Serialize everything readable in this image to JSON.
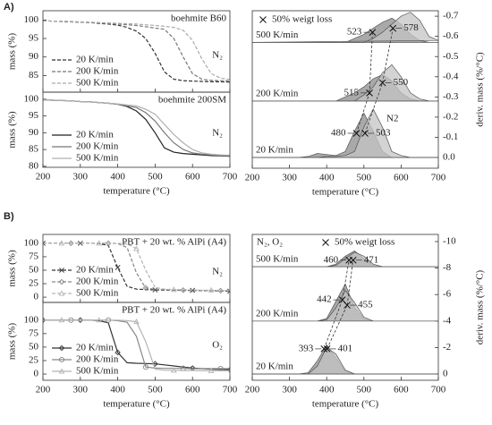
{
  "panel_labels": [
    "A)",
    "B)"
  ],
  "chart_data": [
    {
      "type": "line",
      "title": "boehmite B60",
      "annotation": "N₂",
      "ylabel": "mass (%)",
      "line_style": "dashed",
      "legend": "lower left",
      "x": [
        200,
        225,
        250,
        275,
        300,
        325,
        350,
        375,
        400,
        425,
        450,
        475,
        500,
        525,
        550,
        575,
        600,
        625,
        650,
        675,
        700
      ],
      "xlim": [
        200,
        700
      ],
      "xticks": [
        200,
        300,
        400,
        500,
        600,
        700
      ],
      "ylim": [
        80.5,
        102.5
      ],
      "yticks": [
        85,
        90,
        95,
        100
      ],
      "series": [
        {
          "name": "20 K/min",
          "color": "#333333",
          "values": [
            99.8,
            99.7,
            99.6,
            99.5,
            99.4,
            99.3,
            99.1,
            98.9,
            98.6,
            98.0,
            97,
            95,
            91,
            86,
            84,
            83.6,
            83.5,
            83.4,
            83.3,
            83.3,
            83.2
          ]
        },
        {
          "name": "200 K/min",
          "color": "#777777",
          "values": [
            99.8,
            99.7,
            99.6,
            99.5,
            99.4,
            99.3,
            99.2,
            99.0,
            98.9,
            98.7,
            98.5,
            98.2,
            97.8,
            97.5,
            95,
            90,
            85.5,
            84,
            83.7,
            83.6,
            83.5
          ]
        },
        {
          "name": "500 K/min",
          "color": "#aaaaaa",
          "values": [
            99.8,
            99.7,
            99.7,
            99.6,
            99.5,
            99.4,
            99.3,
            99.2,
            99.1,
            99.0,
            98.9,
            98.7,
            98.5,
            98.3,
            98.0,
            97.2,
            94.5,
            89.5,
            85.5,
            84.3,
            83.9
          ]
        }
      ]
    },
    {
      "type": "line",
      "title": "boehmite 200SM",
      "annotation": "N₂",
      "ylabel": "mass (%)",
      "xlabel": "temperature (°C)",
      "line_style": "solid",
      "legend": "lower left",
      "x": [
        200,
        225,
        250,
        275,
        300,
        325,
        350,
        375,
        400,
        425,
        450,
        475,
        500,
        525,
        550,
        575,
        600,
        625,
        650,
        675,
        700
      ],
      "xlim": [
        200,
        700
      ],
      "xticks": [
        200,
        300,
        400,
        500,
        600,
        700
      ],
      "ylim": [
        79.7,
        102.1
      ],
      "yticks": [
        80,
        85,
        90,
        95,
        100
      ],
      "series": [
        {
          "name": "20 K/min",
          "color": "#222222",
          "values": [
            99.8,
            99.7,
            99.6,
            99.5,
            99.3,
            99.2,
            99.0,
            98.8,
            98.5,
            97.8,
            96.5,
            94,
            90,
            85.5,
            84.2,
            83.8,
            83.6,
            83.4,
            83.2,
            83.1,
            83.0
          ]
        },
        {
          "name": "200 K/min",
          "color": "#777777",
          "values": [
            99.8,
            99.7,
            99.6,
            99.5,
            99.3,
            99.2,
            99.0,
            98.8,
            98.5,
            98.0,
            97.5,
            96,
            93.5,
            90,
            87,
            85,
            84,
            83.6,
            83.4,
            83.2,
            83.1
          ]
        },
        {
          "name": "500 K/min",
          "color": "#b0b0b0",
          "values": [
            99.8,
            99.7,
            99.6,
            99.5,
            99.3,
            99.2,
            99.0,
            98.8,
            98.6,
            98.3,
            98,
            97,
            95.5,
            92.5,
            89.5,
            87,
            85,
            84,
            83.6,
            83.4,
            83.3
          ]
        }
      ]
    },
    {
      "type": "area",
      "ylabel": "deriv. mass (%/°C)",
      "xlabel": "temperature (°C)",
      "annotation": "N2",
      "yaxis": "right",
      "rate_labels": [
        "20 K/min",
        "200 K/min",
        "500 K/min"
      ],
      "x": [
        200,
        225,
        250,
        275,
        300,
        325,
        350,
        375,
        400,
        425,
        450,
        475,
        500,
        525,
        550,
        575,
        600,
        625,
        650,
        675,
        700
      ],
      "xlim": [
        200,
        700
      ],
      "xticks": [
        200,
        300,
        400,
        500,
        600,
        700
      ],
      "ylim": [
        0.053,
        -0.727
      ],
      "yticks": [
        {
          "value": 0,
          "label": "0.0"
        },
        -0.1,
        -0.2,
        -0.3,
        -0.4,
        -0.5,
        -0.6,
        -0.7
      ],
      "series": [
        {
          "color": "#8c8c8c",
          "values": [
            0,
            0,
            0,
            0,
            0,
            0,
            -0.005,
            -0.02,
            -0.015,
            -0.01,
            -0.03,
            -0.13,
            -0.22,
            -0.13,
            -0.03,
            0,
            0,
            0,
            0,
            0,
            0
          ]
        },
        {
          "color": "#c4c4c4",
          "values": [
            0,
            0,
            0,
            0,
            0,
            0,
            0,
            0,
            -0.005,
            -0.005,
            -0.01,
            -0.03,
            -0.15,
            -0.24,
            -0.15,
            -0.03,
            -0.01,
            0,
            0,
            0,
            0
          ]
        },
        {
          "color": "#8c8c8c",
          "values": [
            -0.28,
            -0.28,
            -0.28,
            -0.28,
            -0.28,
            -0.28,
            -0.28,
            -0.28,
            -0.28,
            -0.28,
            -0.3,
            -0.32,
            -0.35,
            -0.39,
            -0.41,
            -0.38,
            -0.32,
            -0.29,
            -0.28,
            -0.28,
            -0.28
          ]
        },
        {
          "color": "#c4c4c4",
          "values": [
            -0.28,
            -0.28,
            -0.28,
            -0.28,
            -0.28,
            -0.28,
            -0.28,
            -0.28,
            -0.28,
            -0.28,
            -0.28,
            -0.28,
            -0.31,
            -0.35,
            -0.42,
            -0.46,
            -0.4,
            -0.32,
            -0.29,
            -0.28,
            -0.28
          ]
        },
        {
          "color": "#8c8c8c",
          "values": [
            -0.57,
            -0.57,
            -0.57,
            -0.57,
            -0.57,
            -0.57,
            -0.57,
            -0.57,
            -0.57,
            -0.57,
            -0.57,
            -0.59,
            -0.61,
            -0.64,
            -0.67,
            -0.69,
            -0.66,
            -0.61,
            -0.58,
            -0.57,
            -0.57
          ]
        },
        {
          "color": "#c4c4c4",
          "values": [
            -0.57,
            -0.57,
            -0.57,
            -0.57,
            -0.57,
            -0.57,
            -0.57,
            -0.57,
            -0.57,
            -0.57,
            -0.57,
            -0.57,
            -0.57,
            -0.59,
            -0.62,
            -0.66,
            -0.7,
            -0.72,
            -0.68,
            -0.6,
            -0.58
          ]
        }
      ],
      "markers": {
        "name": "50% weigt loss",
        "x": [
          480,
          503,
          515,
          550,
          523,
          578
        ],
        "values": [
          -0.12,
          -0.12,
          -0.32,
          -0.37,
          -0.62,
          -0.64
        ]
      }
    },
    {
      "type": "line",
      "title": "PBT + 20 wt. % AlPi (A4)",
      "annotation": "N₂",
      "ylabel": "mass (%)",
      "line_style": "dashed",
      "legend": "lower left",
      "x": [
        200,
        225,
        250,
        275,
        300,
        325,
        350,
        375,
        400,
        425,
        450,
        475,
        500,
        525,
        550,
        575,
        600,
        625,
        650,
        675,
        700
      ],
      "xlim": [
        200,
        700
      ],
      "xticks": [
        200,
        300,
        400,
        500,
        600,
        700
      ],
      "ylim": [
        -9.8,
        116.4
      ],
      "yticks": [
        0,
        25,
        50,
        75,
        100
      ],
      "series": [
        {
          "name": "20 K/min",
          "color": "#333333",
          "marker": "cross",
          "values": [
            100,
            100,
            100,
            100,
            100,
            100,
            99.5,
            96,
            55,
            20,
            15,
            14,
            13.5,
            13,
            13,
            12.5,
            12.5,
            12,
            12,
            11.5,
            11
          ]
        },
        {
          "name": "200 K/min",
          "color": "#888888",
          "marker": "diamond",
          "values": [
            100,
            100,
            100,
            100,
            100,
            100,
            100,
            100,
            99.5,
            92,
            45,
            17,
            14.5,
            14,
            13.5,
            13,
            13,
            12.5,
            12.5,
            12,
            12
          ]
        },
        {
          "name": "500 K/min",
          "color": "#b5b5b5",
          "marker": "triangle",
          "values": [
            100,
            100,
            100,
            100,
            100,
            100,
            100,
            100,
            100,
            99,
            90,
            50,
            18,
            15,
            14,
            14,
            13.5,
            13,
            13,
            12.5,
            12
          ]
        }
      ]
    },
    {
      "type": "line",
      "title": "PBT + 20 wt. % AlPi (A4)",
      "annotation": "O₂",
      "ylabel": "mass (%)",
      "xlabel": "temperature (°C)",
      "line_style": "solid",
      "legend": "lower left",
      "x": [
        200,
        225,
        250,
        275,
        300,
        325,
        350,
        375,
        400,
        425,
        450,
        475,
        500,
        525,
        550,
        575,
        600,
        625,
        650,
        675,
        700
      ],
      "xlim": [
        200,
        700
      ],
      "xticks": [
        200,
        300,
        400,
        500,
        600,
        700
      ],
      "ylim": [
        -11.5,
        132.8
      ],
      "yticks": [
        0,
        25,
        50,
        75,
        100
      ],
      "series": [
        {
          "name": "20 K/min",
          "color": "#333333",
          "marker": "diamond",
          "values": [
            100,
            100,
            100,
            100,
            100,
            100,
            99,
            95,
            40,
            21,
            20,
            19.5,
            19,
            17,
            15,
            13,
            11,
            10,
            9,
            8.5,
            8
          ]
        },
        {
          "name": "200 K/min",
          "color": "#888888",
          "marker": "circle",
          "values": [
            100,
            100,
            100,
            100,
            100,
            100,
            100,
            100,
            99,
            96,
            70,
            13,
            11,
            10.5,
            10.5,
            10.5,
            10,
            10,
            10,
            10,
            10
          ]
        },
        {
          "name": "500 K/min",
          "color": "#b5b5b5",
          "marker": "triangle",
          "values": [
            100,
            100,
            100,
            100,
            100,
            100,
            100,
            100,
            100,
            99,
            97,
            60,
            9,
            7,
            7,
            6.5,
            6.5,
            6,
            6,
            6,
            6
          ]
        }
      ]
    },
    {
      "type": "area",
      "ylabel": "deriv. mass (%/°C)",
      "xlabel": "temperature (°C)",
      "annotation": "N₂, O₂",
      "yaxis": "right",
      "rate_labels": [
        "20 K/min",
        "200 K/min",
        "500 K/min"
      ],
      "x": [
        200,
        225,
        250,
        275,
        300,
        325,
        350,
        375,
        400,
        425,
        450,
        475,
        500,
        525,
        550,
        575,
        600,
        625,
        650,
        675,
        700
      ],
      "xlim": [
        200,
        700
      ],
      "xticks": [
        200,
        300,
        400,
        500,
        600,
        700
      ],
      "ylim": [
        0.47,
        -10.54
      ],
      "yticks": [
        0,
        -2,
        -4,
        -6,
        -8,
        -10
      ],
      "series": [
        {
          "color": "#8c8c8c",
          "values": [
            0,
            0,
            0,
            0,
            0,
            0,
            -0.1,
            -1.0,
            -2.2,
            -1.2,
            -0.2,
            0,
            0,
            0,
            0,
            0,
            0,
            0,
            0,
            0,
            0
          ]
        },
        {
          "color": "#c4c4c4",
          "values": [
            0,
            0,
            0,
            0,
            0,
            0,
            0,
            -0.6,
            -2.0,
            -1.5,
            -0.3,
            0,
            0,
            0,
            0,
            0,
            0,
            0,
            0,
            0,
            0
          ]
        },
        {
          "color": "#8c8c8c",
          "values": [
            -4,
            -4,
            -4,
            -4,
            -4,
            -4,
            -4,
            -4,
            -4.2,
            -5.5,
            -6.8,
            -5.0,
            -4.2,
            -4,
            -4,
            -4,
            -4,
            -4,
            -4,
            -4,
            -4
          ]
        },
        {
          "color": "#c4c4c4",
          "values": [
            -4,
            -4,
            -4,
            -4,
            -4,
            -4,
            -4,
            -4,
            -4.1,
            -5.0,
            -6.3,
            -5.4,
            -4.3,
            -4,
            -4,
            -4,
            -4,
            -4,
            -4,
            -4,
            -4
          ]
        },
        {
          "color": "#8c8c8c",
          "values": [
            -8.1,
            -8.1,
            -8.1,
            -8.1,
            -8.1,
            -8.1,
            -8.1,
            -8.1,
            -8.1,
            -8.3,
            -8.9,
            -9.3,
            -8.7,
            -8.2,
            -8.1,
            -8.1,
            -8.1,
            -8.1,
            -8.1,
            -8.1,
            -8.1
          ]
        },
        {
          "color": "#c4c4c4",
          "values": [
            -8.1,
            -8.1,
            -8.1,
            -8.1,
            -8.1,
            -8.1,
            -8.1,
            -8.1,
            -8.1,
            -8.2,
            -8.7,
            -9.2,
            -8.9,
            -8.3,
            -8.1,
            -8.1,
            -8.1,
            -8.1,
            -8.1,
            -8.1,
            -8.1
          ]
        }
      ],
      "markers": {
        "name": "50% weigt loss",
        "x": [
          393,
          401,
          442,
          455,
          460,
          471
        ],
        "values": [
          -1.9,
          -1.9,
          -5.6,
          -5.2,
          -8.6,
          -8.6
        ]
      }
    }
  ]
}
